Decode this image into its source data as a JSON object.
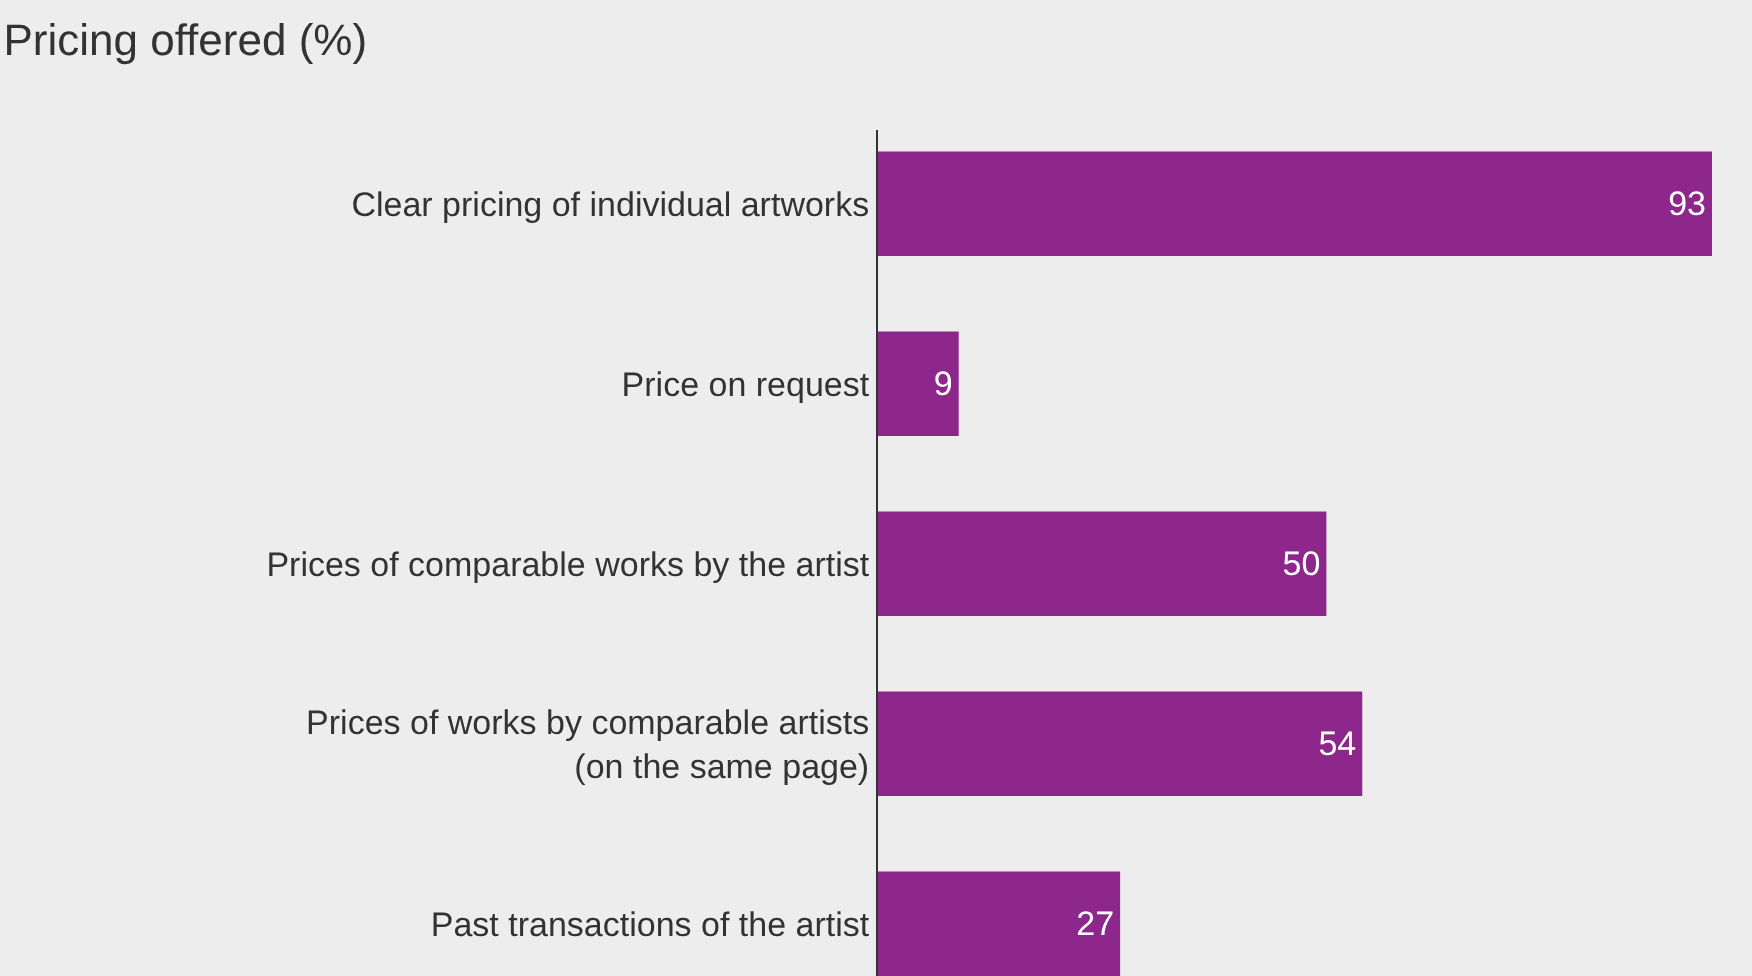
{
  "chart_data": {
    "type": "bar",
    "orientation": "horizontal",
    "title": "Pricing offered (%)",
    "categories": [
      "Clear pricing of individual artworks",
      "Price on request",
      "Prices of comparable works by the artist",
      "Prices of works by comparable artists\n(on the same page)",
      "Past transactions of the artist"
    ],
    "values": [
      93,
      9,
      50,
      54,
      27
    ],
    "color": "#8e278c",
    "xlim": [
      0,
      93
    ],
    "data_labels": true
  }
}
